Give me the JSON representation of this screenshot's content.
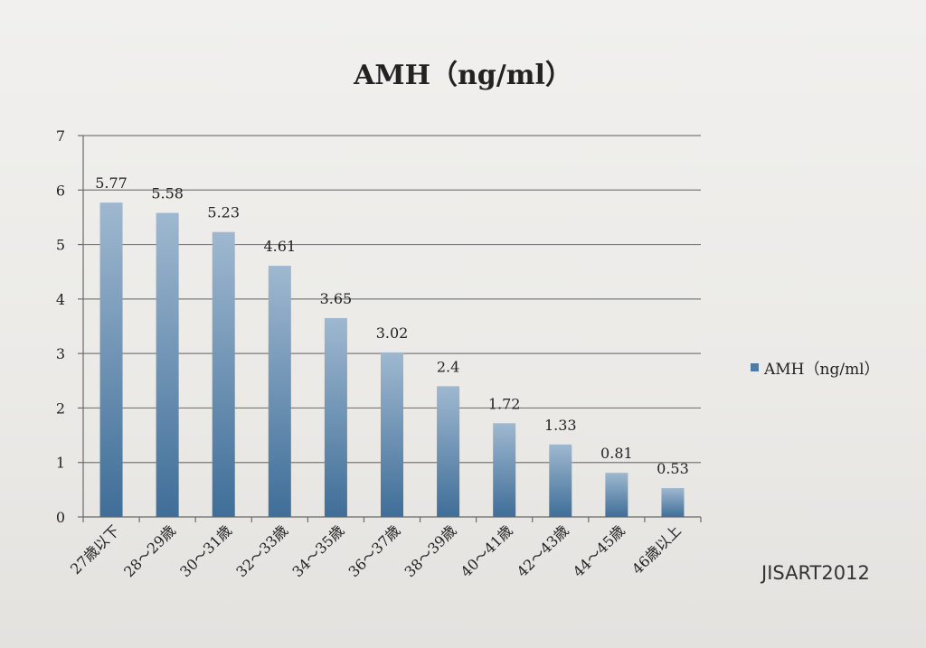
{
  "chart_data": {
    "type": "bar",
    "title": "AMH（ng/ml）",
    "categories": [
      "27歳以下",
      "28～29歳",
      "30～31歳",
      "32～33歳",
      "34～35歳",
      "36～37歳",
      "38～39歳",
      "40～41歳",
      "42～43歳",
      "44～45歳",
      "46歳以上"
    ],
    "series": [
      {
        "name": "AMH（ng/ml）",
        "values": [
          5.77,
          5.58,
          5.23,
          4.61,
          3.65,
          3.02,
          2.4,
          1.72,
          1.33,
          0.81,
          0.53
        ]
      }
    ],
    "value_labels": [
      "5.77",
      "5.58",
      "5.23",
      "4.61",
      "3.65",
      "3.02",
      "2.4",
      "1.72",
      "1.33",
      "0.81",
      "0.53"
    ],
    "ylim": [
      0,
      7
    ],
    "yticks": [
      "0",
      "1",
      "2",
      "3",
      "4",
      "5",
      "6",
      "7"
    ],
    "grid": true,
    "legend_position": "right",
    "bar_color": "#4e7aa3",
    "source": "JISART2012"
  }
}
